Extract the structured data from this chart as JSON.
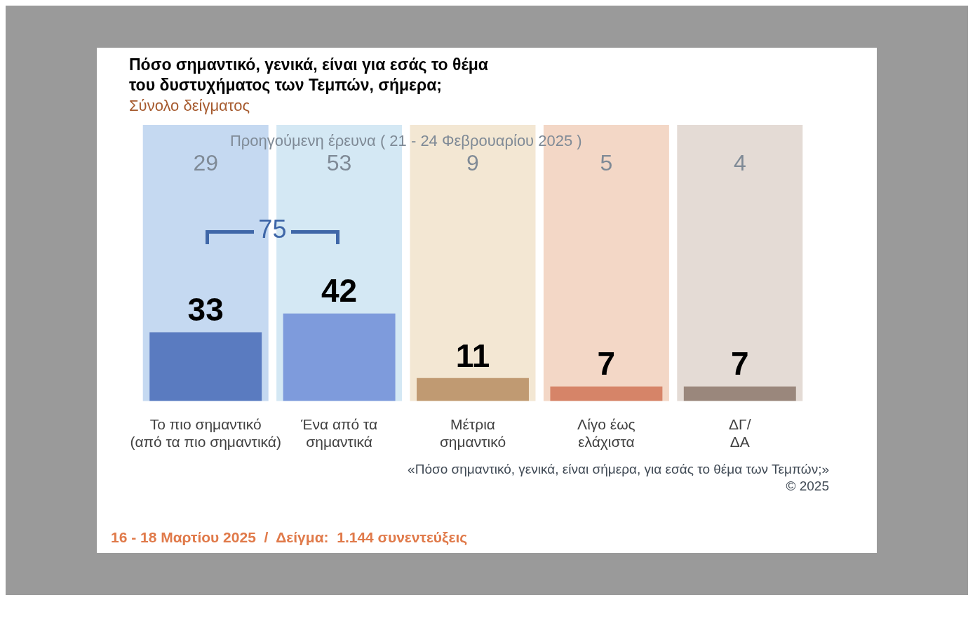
{
  "chart_data": {
    "type": "bar",
    "title": "Πόσο σημαντικό, γενικά, είναι για εσάς το θέμα\nτου δυστυχήματος των Τεμπών, σήμερα;",
    "subtitle": "Σύνολο δείγματος",
    "categories": [
      "Το πιο σημαντικό\n(από τα πιο σημαντικά)",
      "Ένα από τα\nσημαντικά",
      "Μέτρια\nσημαντικό",
      "Λίγο έως\nελάχιστα",
      "ΔΓ/\nΔΑ"
    ],
    "values": [
      33,
      42,
      11,
      7,
      7
    ],
    "colors": [
      "#5a7bc0",
      "#7e9bdc",
      "#c09a72",
      "#d68468",
      "#9a877c"
    ],
    "data_labels": true,
    "bands": [
      {
        "axis": "x",
        "from": "Το πιο σημαντικό\n(από τα πιο σημαντικά)",
        "to": "Το πιο σημαντικό\n(από τα πιο σημαντικά)",
        "label": "29",
        "color": "#c5d9f1"
      },
      {
        "axis": "x",
        "from": "Ένα από τα\nσημαντικά",
        "to": "Ένα από τα\nσημαντικά",
        "label": "53",
        "color": "#d4e8f4"
      },
      {
        "axis": "x",
        "from": "Μέτρια\nσημαντικό",
        "to": "Μέτρια\nσημαντικό",
        "label": "9",
        "color": "#f3e7d3"
      },
      {
        "axis": "x",
        "from": "Λίγο έως\nελάχιστα",
        "to": "Λίγο έως\nελάχιστα",
        "label": "5",
        "color": "#f3d7c6"
      },
      {
        "axis": "x",
        "from": "ΔΓ/\nΔΑ",
        "to": "ΔΓ/\nΔΑ",
        "label": "4",
        "color": "#e4dbd5"
      }
    ],
    "annotations": [
      "Προηγούμενη έρευνα ( 21 - 24 Φεβρουαρίου 2025 )",
      "75",
      "«Πόσο σημαντικό, γενικά, είναι σήμερα, για εσάς το θέμα των Τεμπών;»",
      "©  2025",
      "16 - 18 Μαρτίου 2025  /  Δείγμα:  1.144 συνεντεύξεις"
    ]
  }
}
